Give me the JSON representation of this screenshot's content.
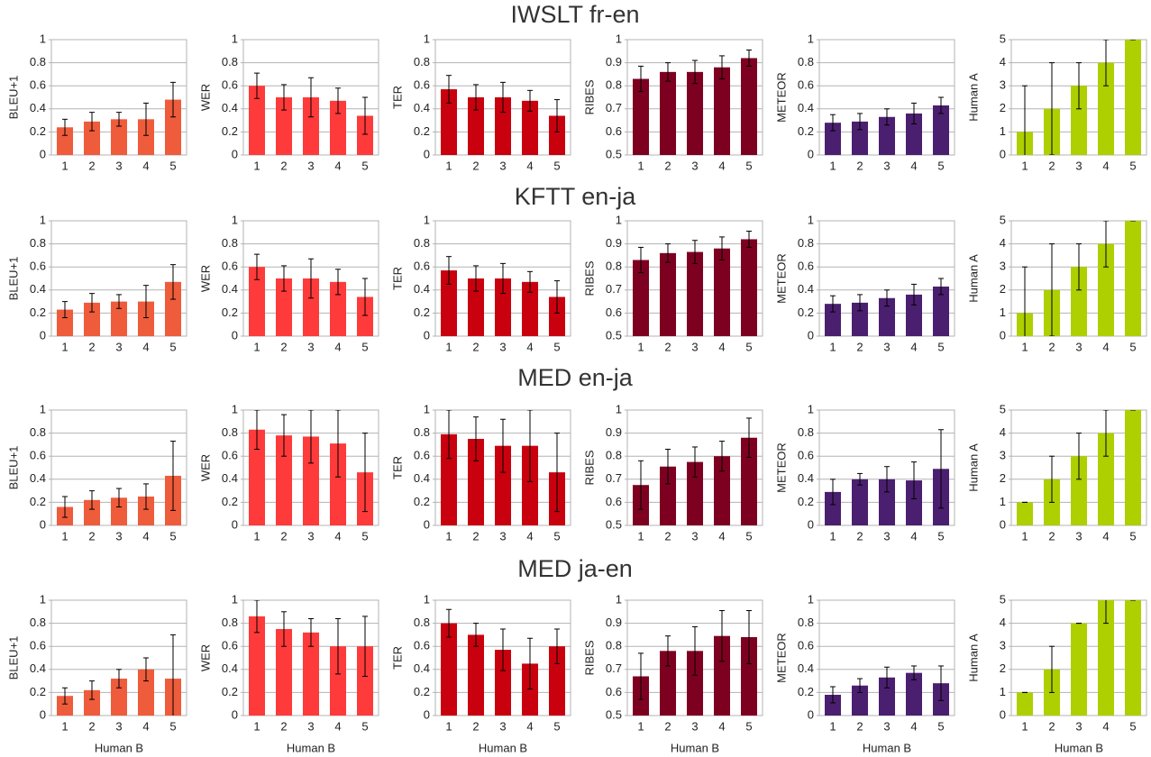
{
  "sections": [
    {
      "title": "IWSLT fr-en"
    },
    {
      "title": "KFTT en-ja"
    },
    {
      "title": "MED en-ja"
    },
    {
      "title": "MED ja-en"
    }
  ],
  "chart_data": [
    {
      "type": "bar",
      "ylabel": "BLEU+1",
      "categories": [
        "1",
        "2",
        "3",
        "4",
        "5"
      ],
      "values": [
        0.24,
        0.29,
        0.31,
        0.31,
        0.48
      ],
      "errors": [
        0.07,
        0.08,
        0.06,
        0.14,
        0.15
      ],
      "color": "#ee5c3c",
      "ylim": [
        0,
        1
      ],
      "yticks": [
        0,
        0.2,
        0.4,
        0.6,
        0.8,
        1
      ],
      "grid": true
    },
    {
      "type": "bar",
      "ylabel": "WER",
      "categories": [
        "1",
        "2",
        "3",
        "4",
        "5"
      ],
      "values": [
        0.6,
        0.5,
        0.5,
        0.47,
        0.34
      ],
      "errors": [
        0.11,
        0.11,
        0.17,
        0.11,
        0.16
      ],
      "color": "#ff3a3a",
      "ylim": [
        0,
        1
      ],
      "yticks": [
        0,
        0.2,
        0.4,
        0.6,
        0.8,
        1
      ],
      "grid": true
    },
    {
      "type": "bar",
      "ylabel": "TER",
      "categories": [
        "1",
        "2",
        "3",
        "4",
        "5"
      ],
      "values": [
        0.57,
        0.5,
        0.5,
        0.47,
        0.34
      ],
      "errors": [
        0.12,
        0.11,
        0.13,
        0.09,
        0.14
      ],
      "color": "#c9000e",
      "ylim": [
        0,
        1
      ],
      "yticks": [
        0,
        0.2,
        0.4,
        0.6,
        0.8,
        1
      ],
      "grid": true
    },
    {
      "type": "bar",
      "ylabel": "RIBES",
      "categories": [
        "1",
        "2",
        "3",
        "4",
        "5"
      ],
      "values": [
        0.83,
        0.86,
        0.86,
        0.88,
        0.92
      ],
      "errors": [
        0.055,
        0.04,
        0.05,
        0.05,
        0.035
      ],
      "color": "#7e0021",
      "ylim": [
        0.5,
        1
      ],
      "yticks": [
        0.5,
        0.6,
        0.7,
        0.8,
        0.9,
        1
      ],
      "grid": true
    },
    {
      "type": "bar",
      "ylabel": "METEOR",
      "categories": [
        "1",
        "2",
        "3",
        "4",
        "5"
      ],
      "values": [
        0.28,
        0.29,
        0.33,
        0.36,
        0.43
      ],
      "errors": [
        0.07,
        0.07,
        0.07,
        0.09,
        0.07
      ],
      "color": "#4b1f6f",
      "ylim": [
        0,
        1
      ],
      "yticks": [
        0,
        0.2,
        0.4,
        0.6,
        0.8,
        1
      ],
      "grid": true
    },
    {
      "type": "bar",
      "ylabel": "Human A",
      "categories": [
        "1",
        "2",
        "3",
        "4",
        "5"
      ],
      "values": [
        1,
        2,
        3,
        4,
        5
      ],
      "errors": [
        2,
        2,
        1,
        1,
        0
      ],
      "color": "#aecf00",
      "ylim": [
        0,
        5
      ],
      "yticks": [
        0,
        1,
        2,
        3,
        4,
        5
      ],
      "grid": true
    },
    {
      "type": "bar",
      "ylabel": "BLEU+1",
      "categories": [
        "1",
        "2",
        "3",
        "4",
        "5"
      ],
      "values": [
        0.23,
        0.29,
        0.3,
        0.3,
        0.47
      ],
      "errors": [
        0.07,
        0.08,
        0.06,
        0.14,
        0.15
      ],
      "color": "#ee5c3c",
      "ylim": [
        0,
        1
      ],
      "yticks": [
        0,
        0.2,
        0.4,
        0.6,
        0.8,
        1
      ],
      "grid": true
    },
    {
      "type": "bar",
      "ylabel": "WER",
      "categories": [
        "1",
        "2",
        "3",
        "4",
        "5"
      ],
      "values": [
        0.6,
        0.5,
        0.5,
        0.47,
        0.34
      ],
      "errors": [
        0.11,
        0.11,
        0.17,
        0.11,
        0.16
      ],
      "color": "#ff3a3a",
      "ylim": [
        0,
        1
      ],
      "yticks": [
        0,
        0.2,
        0.4,
        0.6,
        0.8,
        1
      ],
      "grid": true
    },
    {
      "type": "bar",
      "ylabel": "TER",
      "categories": [
        "1",
        "2",
        "3",
        "4",
        "5"
      ],
      "values": [
        0.57,
        0.5,
        0.5,
        0.47,
        0.34
      ],
      "errors": [
        0.12,
        0.11,
        0.13,
        0.09,
        0.14
      ],
      "color": "#c9000e",
      "ylim": [
        0,
        1
      ],
      "yticks": [
        0,
        0.2,
        0.4,
        0.6,
        0.8,
        1
      ],
      "grid": true
    },
    {
      "type": "bar",
      "ylabel": "RIBES",
      "categories": [
        "1",
        "2",
        "3",
        "4",
        "5"
      ],
      "values": [
        0.83,
        0.86,
        0.865,
        0.88,
        0.92
      ],
      "errors": [
        0.055,
        0.04,
        0.05,
        0.05,
        0.035
      ],
      "color": "#7e0021",
      "ylim": [
        0.5,
        1
      ],
      "yticks": [
        0.5,
        0.6,
        0.7,
        0.8,
        0.9,
        1
      ],
      "grid": true
    },
    {
      "type": "bar",
      "ylabel": "METEOR",
      "categories": [
        "1",
        "2",
        "3",
        "4",
        "5"
      ],
      "values": [
        0.28,
        0.29,
        0.33,
        0.36,
        0.43
      ],
      "errors": [
        0.07,
        0.07,
        0.07,
        0.09,
        0.07
      ],
      "color": "#4b1f6f",
      "ylim": [
        0,
        1
      ],
      "yticks": [
        0,
        0.2,
        0.4,
        0.6,
        0.8,
        1
      ],
      "grid": true
    },
    {
      "type": "bar",
      "ylabel": "Human A",
      "categories": [
        "1",
        "2",
        "3",
        "4",
        "5"
      ],
      "values": [
        1,
        2,
        3,
        4,
        5
      ],
      "errors": [
        2,
        2,
        1,
        1,
        0
      ],
      "color": "#aecf00",
      "ylim": [
        0,
        5
      ],
      "yticks": [
        0,
        1,
        2,
        3,
        4,
        5
      ],
      "grid": true
    },
    {
      "type": "bar",
      "ylabel": "BLEU+1",
      "categories": [
        "1",
        "2",
        "3",
        "4",
        "5"
      ],
      "values": [
        0.16,
        0.22,
        0.24,
        0.25,
        0.43
      ],
      "errors": [
        0.09,
        0.08,
        0.08,
        0.11,
        0.3
      ],
      "color": "#ee5c3c",
      "ylim": [
        0,
        1
      ],
      "yticks": [
        0,
        0.2,
        0.4,
        0.6,
        0.8,
        1
      ],
      "grid": true
    },
    {
      "type": "bar",
      "ylabel": "WER",
      "categories": [
        "1",
        "2",
        "3",
        "4",
        "5"
      ],
      "values": [
        0.83,
        0.78,
        0.77,
        0.71,
        0.46
      ],
      "errors": [
        0.17,
        0.18,
        0.23,
        0.29,
        0.34
      ],
      "color": "#ff3a3a",
      "ylim": [
        0,
        1
      ],
      "yticks": [
        0,
        0.2,
        0.4,
        0.6,
        0.8,
        1
      ],
      "grid": true
    },
    {
      "type": "bar",
      "ylabel": "TER",
      "categories": [
        "1",
        "2",
        "3",
        "4",
        "5"
      ],
      "values": [
        0.79,
        0.75,
        0.69,
        0.69,
        0.46
      ],
      "errors": [
        0.21,
        0.19,
        0.23,
        0.31,
        0.34
      ],
      "color": "#c9000e",
      "ylim": [
        0,
        1
      ],
      "yticks": [
        0,
        0.2,
        0.4,
        0.6,
        0.8,
        1
      ],
      "grid": true
    },
    {
      "type": "bar",
      "ylabel": "RIBES",
      "categories": [
        "1",
        "2",
        "3",
        "4",
        "5"
      ],
      "values": [
        0.675,
        0.755,
        0.775,
        0.8,
        0.88
      ],
      "errors": [
        0.105,
        0.075,
        0.065,
        0.065,
        0.085
      ],
      "color": "#7e0021",
      "ylim": [
        0.5,
        1
      ],
      "yticks": [
        0.5,
        0.6,
        0.7,
        0.8,
        0.9,
        1
      ],
      "grid": true
    },
    {
      "type": "bar",
      "ylabel": "METEOR",
      "categories": [
        "1",
        "2",
        "3",
        "4",
        "5"
      ],
      "values": [
        0.29,
        0.4,
        0.4,
        0.39,
        0.49
      ],
      "errors": [
        0.11,
        0.05,
        0.11,
        0.16,
        0.34
      ],
      "color": "#4b1f6f",
      "ylim": [
        0,
        1
      ],
      "yticks": [
        0,
        0.2,
        0.4,
        0.6,
        0.8,
        1
      ],
      "grid": true
    },
    {
      "type": "bar",
      "ylabel": "Human A",
      "categories": [
        "1",
        "2",
        "3",
        "4",
        "5"
      ],
      "values": [
        1,
        2,
        3,
        4,
        5
      ],
      "errors": [
        0,
        1,
        1,
        1,
        0
      ],
      "color": "#aecf00",
      "ylim": [
        0,
        5
      ],
      "yticks": [
        0,
        1,
        2,
        3,
        4,
        5
      ],
      "grid": true
    },
    {
      "type": "bar",
      "ylabel": "BLEU+1",
      "xlabel": "Human B",
      "categories": [
        "1",
        "2",
        "3",
        "4",
        "5"
      ],
      "values": [
        0.17,
        0.22,
        0.32,
        0.4,
        0.32
      ],
      "errors": [
        0.07,
        0.08,
        0.08,
        0.1,
        0.38
      ],
      "color": "#ee5c3c",
      "ylim": [
        0,
        1
      ],
      "yticks": [
        0,
        0.2,
        0.4,
        0.6,
        0.8,
        1
      ],
      "grid": true
    },
    {
      "type": "bar",
      "ylabel": "WER",
      "xlabel": "Human B",
      "categories": [
        "1",
        "2",
        "3",
        "4",
        "5"
      ],
      "values": [
        0.86,
        0.75,
        0.72,
        0.6,
        0.6
      ],
      "errors": [
        0.14,
        0.15,
        0.12,
        0.24,
        0.26
      ],
      "color": "#ff3a3a",
      "ylim": [
        0,
        1
      ],
      "yticks": [
        0,
        0.2,
        0.4,
        0.6,
        0.8,
        1
      ],
      "grid": true
    },
    {
      "type": "bar",
      "ylabel": "TER",
      "xlabel": "Human B",
      "categories": [
        "1",
        "2",
        "3",
        "4",
        "5"
      ],
      "values": [
        0.8,
        0.7,
        0.57,
        0.45,
        0.6
      ],
      "errors": [
        0.12,
        0.1,
        0.18,
        0.22,
        0.15
      ],
      "color": "#c9000e",
      "ylim": [
        0,
        1
      ],
      "yticks": [
        0,
        0.2,
        0.4,
        0.6,
        0.8,
        1
      ],
      "grid": true
    },
    {
      "type": "bar",
      "ylabel": "RIBES",
      "xlabel": "Human B",
      "categories": [
        "1",
        "2",
        "3",
        "4",
        "5"
      ],
      "values": [
        0.67,
        0.78,
        0.78,
        0.845,
        0.84
      ],
      "errors": [
        0.1,
        0.065,
        0.105,
        0.11,
        0.115
      ],
      "color": "#7e0021",
      "ylim": [
        0.5,
        1
      ],
      "yticks": [
        0.5,
        0.6,
        0.7,
        0.8,
        0.9,
        1
      ],
      "grid": true
    },
    {
      "type": "bar",
      "ylabel": "METEOR",
      "xlabel": "Human B",
      "categories": [
        "1",
        "2",
        "3",
        "4",
        "5"
      ],
      "values": [
        0.18,
        0.26,
        0.33,
        0.37,
        0.28
      ],
      "errors": [
        0.07,
        0.06,
        0.09,
        0.06,
        0.15
      ],
      "color": "#4b1f6f",
      "ylim": [
        0,
        1
      ],
      "yticks": [
        0,
        0.2,
        0.4,
        0.6,
        0.8,
        1
      ],
      "grid": true
    },
    {
      "type": "bar",
      "ylabel": "Human A",
      "xlabel": "Human B",
      "categories": [
        "1",
        "2",
        "3",
        "4",
        "5"
      ],
      "values": [
        1,
        2,
        4,
        5,
        5
      ],
      "errors": [
        0,
        1,
        0,
        1,
        0
      ],
      "color": "#aecf00",
      "ylim": [
        0,
        5
      ],
      "yticks": [
        0,
        1,
        2,
        3,
        4,
        5
      ],
      "grid": true
    }
  ]
}
